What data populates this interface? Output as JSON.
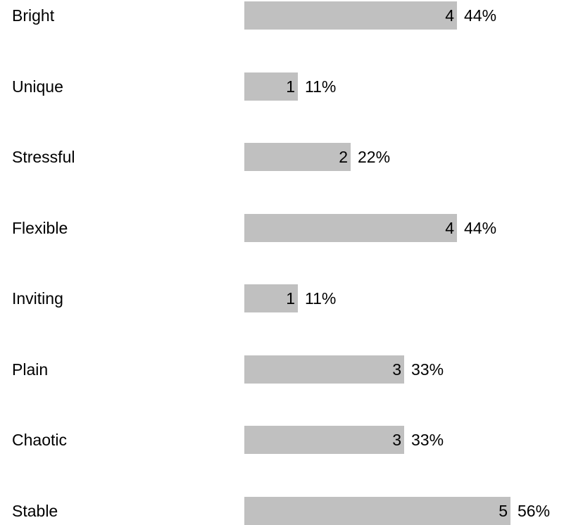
{
  "chart_data": {
    "type": "bar",
    "orientation": "horizontal",
    "categories": [
      "Bright",
      "Unique",
      "Stressful",
      "Flexible",
      "Inviting",
      "Plain",
      "Chaotic",
      "Stable"
    ],
    "values": [
      4,
      1,
      2,
      4,
      1,
      3,
      3,
      5
    ],
    "percent_labels": [
      "44%",
      "11%",
      "22%",
      "44%",
      "11%",
      "33%",
      "33%",
      "56%"
    ],
    "title": "",
    "xlabel": "",
    "ylabel": "",
    "xlim": [
      0,
      5
    ],
    "grid": false,
    "legend": "none",
    "bar_color": "#c0c0c0"
  }
}
